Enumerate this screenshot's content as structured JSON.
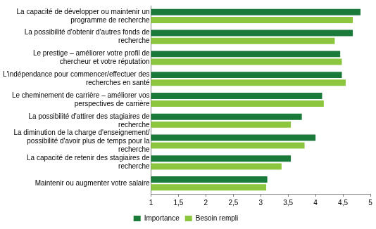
{
  "chart_data": {
    "type": "bar",
    "orientation": "horizontal",
    "categories": [
      "La capacité de développer ou maintenir un programme de recherche",
      "La possibilité d'obtenir d'autres fonds de recherche",
      "Le prestige – améliorer votre profil de chercheur et votre réputation",
      "L'indépendance pour commencer/effectuer des recherches en santé",
      "Le cheminement de carrière – améliorer vos perspectives de carrière",
      "La possibilité d'attirer des stagiaires de recherche",
      "La diminution de la charge d'enseignement/ possibilité d'avoir plus de temps pour la recherche",
      "La capacité de retenir des stagiaires de recherche",
      "Maintenir ou augmenter votre salaire"
    ],
    "series": [
      {
        "name": "Importance",
        "color": "#1a7a3a",
        "values": [
          4.82,
          4.68,
          4.45,
          4.48,
          4.12,
          3.75,
          4.0,
          3.55,
          3.12
        ]
      },
      {
        "name": "Besoin rempli",
        "color": "#8cc63e",
        "values": [
          4.68,
          4.35,
          4.48,
          4.55,
          4.15,
          3.55,
          3.8,
          3.38,
          3.1
        ]
      }
    ],
    "xlim": [
      1,
      5
    ],
    "xticks": [
      1,
      {
        "value": 1.5,
        "label": "1,5"
      },
      2,
      {
        "value": 2.5,
        "label": "2,5"
      },
      3,
      {
        "value": 3.5,
        "label": "3,5"
      },
      4,
      {
        "value": 4.5,
        "label": "4,5"
      },
      5
    ],
    "grid": false,
    "legend": "bottom"
  }
}
